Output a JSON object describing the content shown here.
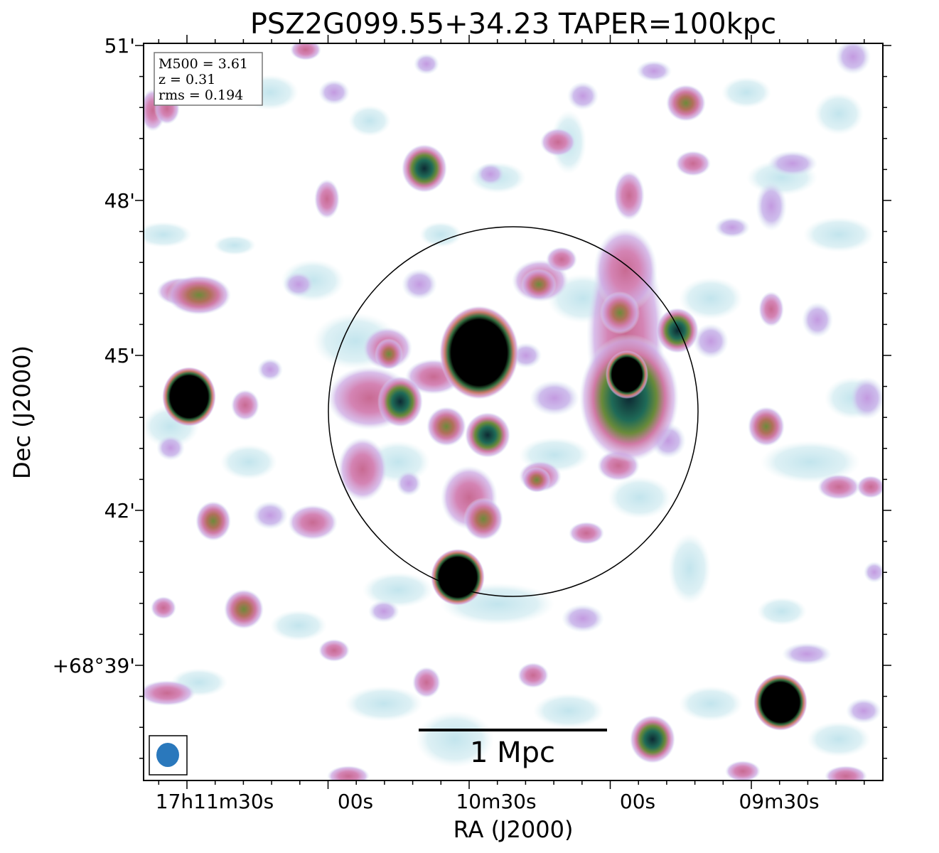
{
  "title": "PSZ2G099.55+34.23 TAPER=100kpc",
  "info_box": {
    "lines": [
      "M500 = 3.61",
      "z = 0.31",
      "rms = 0.194"
    ]
  },
  "axes": {
    "xlabel": "RA (J2000)",
    "ylabel": "Dec (J2000)",
    "x_ticks": [
      "17h11m30s",
      "00s",
      "10m30s",
      "00s",
      "09m30s"
    ],
    "y_ticks": [
      "51'",
      "48'",
      "45'",
      "42'",
      "+68°39'"
    ]
  },
  "scalebar": {
    "label": "1 Mpc"
  },
  "colors": {
    "faint": "#bfe3ec",
    "low": "#c9a6e3",
    "mid": "#d27aa8",
    "high": "#6e8a3c",
    "peak": "#000000",
    "beam": "#2a78bc"
  },
  "icons": {
    "beam": "beam-ellipse-icon",
    "circle": "r500-circle"
  }
}
